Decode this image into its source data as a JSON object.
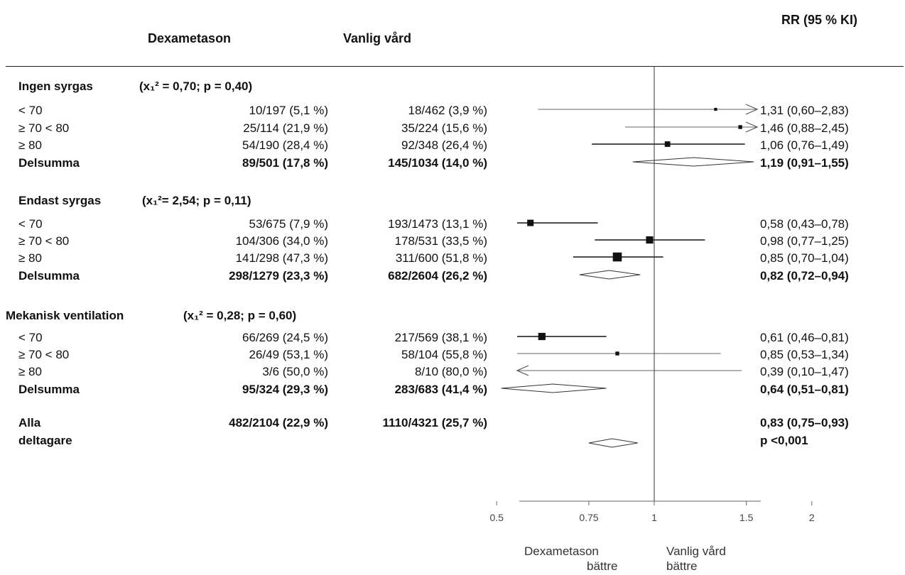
{
  "header": {
    "col_dexa": "Dexametason",
    "col_vanlig": "Vanlig vård",
    "col_rr": "RR (95 % KI)"
  },
  "chart_data": {
    "type": "forest",
    "xscale": "log",
    "xlim": [
      0.42,
      2.0
    ],
    "reference_line": 1,
    "xticks": [
      "0.5",
      "0.75",
      "1",
      "1.5",
      "2"
    ],
    "xtick_values": [
      0.5,
      0.75,
      1,
      1.5,
      2
    ],
    "left_direction_label": [
      "Dexametason",
      "bättre"
    ],
    "right_direction_label": [
      "Vanlig vård",
      "bättre"
    ],
    "groups": [
      {
        "name": "Ingen syrgas",
        "stat": "(x₁² = 0,70; p = 0,40)",
        "rows": [
          {
            "label": "< 70",
            "dexa": "10/197 (5,1 %)",
            "vanlig": "18/462 (3,9 %)",
            "rr_text": "1,31 (0,60–2,83)",
            "rr": 1.31,
            "lo": 0.6,
            "hi": 2.83,
            "weight": 1,
            "arrow_right": true
          },
          {
            "label": "≥ 70 < 80",
            "dexa": "25/114 (21,9 %)",
            "vanlig": "35/224 (15,6 %)",
            "rr_text": "1,46 (0,88–2,45)",
            "rr": 1.46,
            "lo": 0.88,
            "hi": 2.45,
            "weight": 2,
            "arrow_right": true
          },
          {
            "label": "≥ 80",
            "dexa": "54/190 (28,4 %)",
            "vanlig": "92/348 (26,4 %)",
            "rr_text": "1,06 (0,76–1,49)",
            "rr": 1.06,
            "lo": 0.76,
            "hi": 1.49,
            "weight": 4
          }
        ],
        "subtotal": {
          "label": "Delsumma",
          "dexa": "89/501 (17,8 %)",
          "vanlig": "145/1034 (14,0 %)",
          "rr_text": "1,19 (0,91–1,55)",
          "rr": 1.19,
          "lo": 0.91,
          "hi": 1.55
        }
      },
      {
        "name": "Endast syrgas",
        "stat": "(x₁²= 2,54; p = 0,11)",
        "rows": [
          {
            "label": "< 70",
            "dexa": "53/675 (7,9 %)",
            "vanlig": "193/1473 (13,1 %)",
            "rr_text": "0,58 (0,43–0,78)",
            "rr": 0.58,
            "lo": 0.43,
            "hi": 0.78,
            "weight": 5
          },
          {
            "label": "≥ 70 < 80",
            "dexa": "104/306 (34,0 %)",
            "vanlig": "178/531 (33,5 %)",
            "rr_text": "0,98 (0,77–1,25)",
            "rr": 0.98,
            "lo": 0.77,
            "hi": 1.25,
            "weight": 6
          },
          {
            "label": "≥ 80",
            "dexa": "141/298 (47,3 %)",
            "vanlig": "311/600 (51,8 %)",
            "rr_text": "0,85 (0,70–1,04)",
            "rr": 0.85,
            "lo": 0.7,
            "hi": 1.04,
            "weight": 8
          }
        ],
        "subtotal": {
          "label": "Delsumma",
          "dexa": "298/1279 (23,3 %)",
          "vanlig": "682/2604 (26,2 %)",
          "rr_text": "0,82 (0,72–0,94)",
          "rr": 0.82,
          "lo": 0.72,
          "hi": 0.94
        }
      },
      {
        "name": "Mekanisk ventilation",
        "stat": "(x₁² = 0,28; p = 0,60)",
        "rows": [
          {
            "label": "< 70",
            "dexa": "66/269 (24,5 %)",
            "vanlig": "217/569 (38,1 %)",
            "rr_text": "0,61 (0,46–0,81)",
            "rr": 0.61,
            "lo": 0.46,
            "hi": 0.81,
            "weight": 6
          },
          {
            "label": "≥ 70 < 80",
            "dexa": "26/49 (53,1 %)",
            "vanlig": "58/104 (55,8 %)",
            "rr_text": "0,85 (0,53–1,34)",
            "rr": 0.85,
            "lo": 0.53,
            "hi": 1.34,
            "weight": 2
          },
          {
            "label": "≥ 80",
            "dexa": "3/6 (50,0 %)",
            "vanlig": "8/10 (80,0 %)",
            "rr_text": "0,39 (0,10–1,47)",
            "rr": 0.39,
            "lo": 0.1,
            "hi": 1.47,
            "weight": 0,
            "arrow_left": true
          }
        ],
        "subtotal": {
          "label": "Delsumma",
          "dexa": "95/324 (29,3 %)",
          "vanlig": "283/683 (41,4 %)",
          "rr_text": "0,64 (0,51–0,81)",
          "rr": 0.64,
          "lo": 0.51,
          "hi": 0.81
        }
      }
    ],
    "overall": {
      "label_line1": "Alla",
      "label_line2": "deltagare",
      "dexa": "482/2104 (22,9 %)",
      "vanlig": "1110/4321 (25,7 %)",
      "rr_text": "0,83 (0,75–0,93)",
      "p_text": "p <0,001",
      "rr": 0.83,
      "lo": 0.75,
      "hi": 0.93
    }
  }
}
